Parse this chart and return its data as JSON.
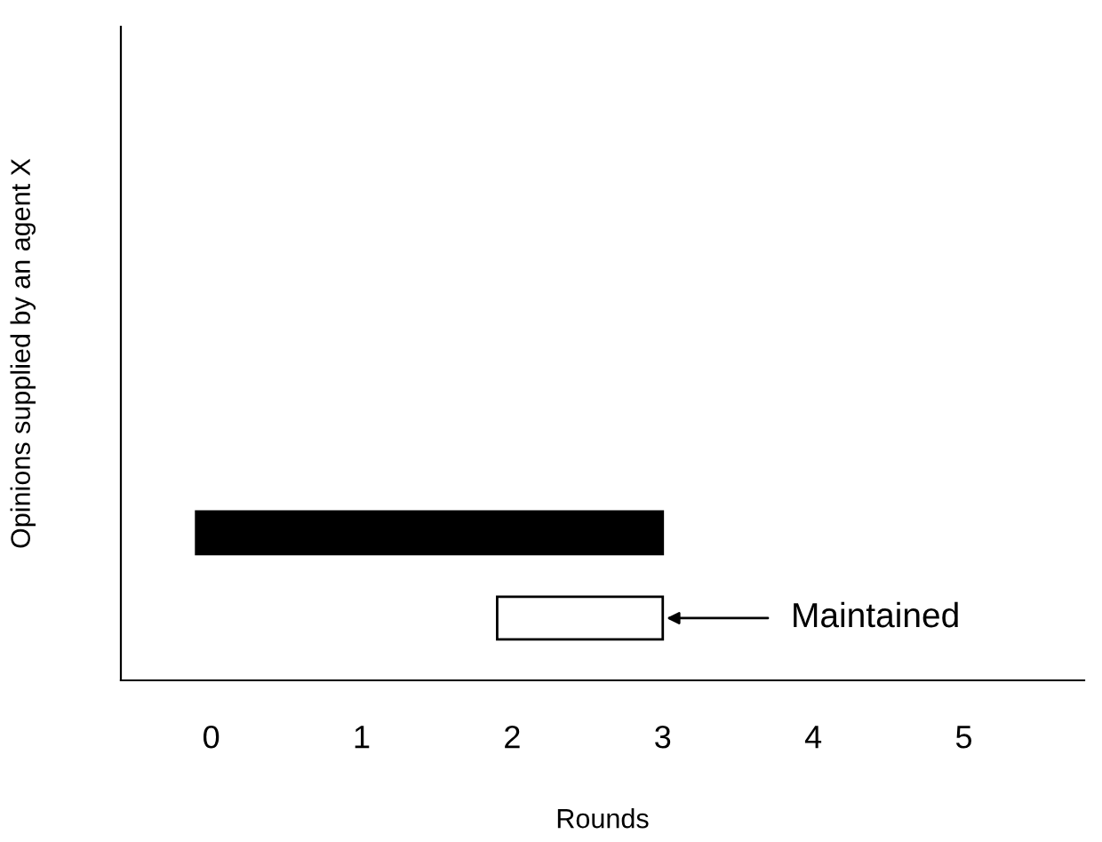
{
  "chart_data": {
    "type": "bar",
    "orientation": "horizontal",
    "xlabel": "Rounds",
    "ylabel": "Opinions supplied by an agent X",
    "categories": [
      null,
      null
    ],
    "values": [
      3.1,
      1.1
    ],
    "base": [
      -0.1,
      1.9
    ],
    "colors": [
      "#000000",
      "#ffffff"
    ],
    "xlim": [
      -0.6,
      5.8
    ],
    "xticks": [
      0,
      1,
      2,
      3,
      4,
      5
    ],
    "annotations": [
      "Maintained"
    ],
    "grid": false,
    "legend": false
  }
}
